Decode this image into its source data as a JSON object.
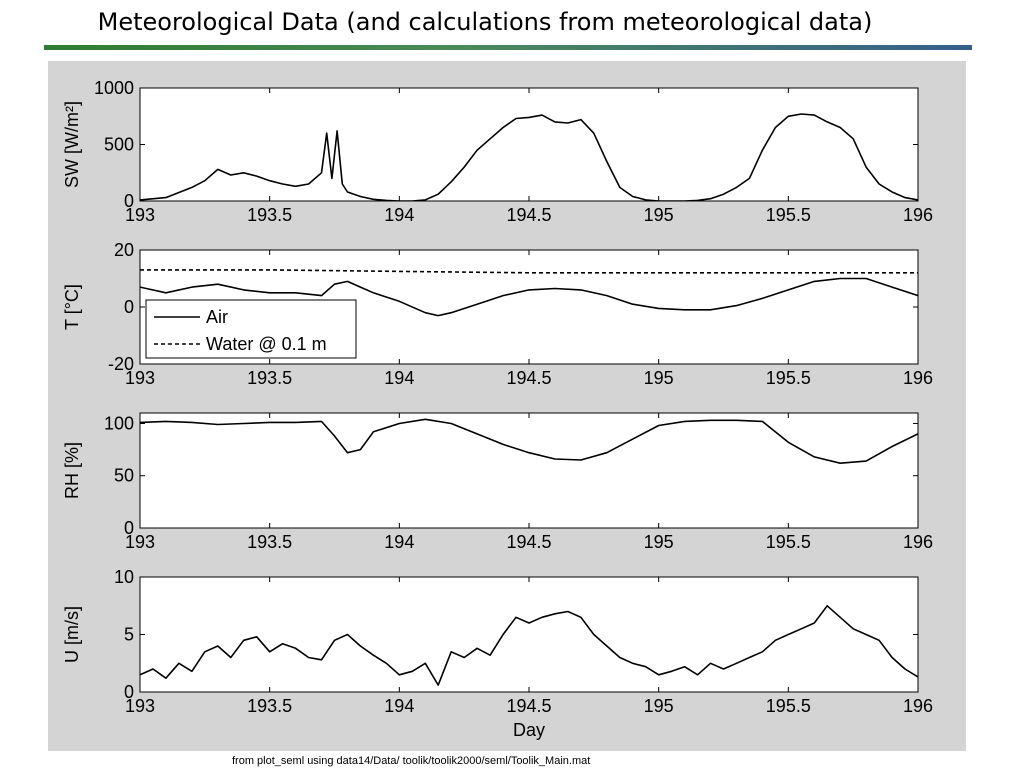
{
  "slide": {
    "title": "Meteorological Data (and calculations from meteorological data)",
    "footnote": "from  plot_seml using data14/Data/ toolik/toolik2000/seml/Toolik_Main.mat",
    "rule_colors": [
      "#2e7d32",
      "#355f8d"
    ],
    "figure_background": "#d4d4d4"
  },
  "chart_data": [
    {
      "type": "line",
      "title": "",
      "xlabel": "",
      "ylabel": "SW [W/m²]",
      "xlim": [
        193,
        196
      ],
      "ylim": [
        0,
        1000
      ],
      "x_ticks": [
        "193",
        "193.5",
        "194",
        "194.5",
        "195",
        "195.5",
        "196"
      ],
      "y_ticks": [
        "0",
        "500",
        "1000"
      ],
      "series": [
        {
          "color": "#000000",
          "style": "solid",
          "x": [
            193.0,
            193.1,
            193.2,
            193.25,
            193.3,
            193.35,
            193.4,
            193.45,
            193.5,
            193.55,
            193.6,
            193.65,
            193.7,
            193.72,
            193.74,
            193.76,
            193.78,
            193.8,
            193.85,
            193.9,
            193.95,
            194.0,
            194.05,
            194.1,
            194.15,
            194.2,
            194.25,
            194.3,
            194.35,
            194.4,
            194.45,
            194.5,
            194.55,
            194.6,
            194.65,
            194.7,
            194.75,
            194.8,
            194.85,
            194.9,
            194.95,
            195.0,
            195.05,
            195.1,
            195.15,
            195.2,
            195.25,
            195.3,
            195.35,
            195.4,
            195.45,
            195.5,
            195.55,
            195.6,
            195.65,
            195.7,
            195.75,
            195.8,
            195.85,
            195.9,
            195.95,
            196.0
          ],
          "values": [
            10,
            30,
            120,
            180,
            280,
            230,
            250,
            220,
            180,
            150,
            130,
            150,
            250,
            600,
            200,
            620,
            150,
            80,
            40,
            15,
            5,
            0,
            0,
            10,
            60,
            170,
            300,
            450,
            550,
            650,
            730,
            740,
            760,
            700,
            690,
            720,
            600,
            350,
            120,
            40,
            10,
            0,
            0,
            0,
            5,
            20,
            60,
            120,
            200,
            450,
            650,
            750,
            770,
            760,
            700,
            650,
            550,
            300,
            150,
            80,
            30,
            10
          ]
        }
      ]
    },
    {
      "type": "line",
      "title": "",
      "xlabel": "",
      "ylabel": "T [°C]",
      "xlim": [
        193,
        196
      ],
      "ylim": [
        -20,
        20
      ],
      "x_ticks": [
        "193",
        "193.5",
        "194",
        "194.5",
        "195",
        "195.5",
        "196"
      ],
      "y_ticks": [
        "-20",
        "0",
        "20"
      ],
      "legend": {
        "position": "bottom-left",
        "entries": [
          "Air",
          "Water @ 0.1 m"
        ]
      },
      "series": [
        {
          "name": "Air",
          "color": "#000000",
          "style": "solid",
          "x": [
            193.0,
            193.1,
            193.2,
            193.3,
            193.4,
            193.5,
            193.6,
            193.7,
            193.75,
            193.8,
            193.85,
            193.9,
            194.0,
            194.1,
            194.15,
            194.2,
            194.3,
            194.4,
            194.5,
            194.6,
            194.7,
            194.8,
            194.9,
            195.0,
            195.1,
            195.2,
            195.3,
            195.4,
            195.5,
            195.6,
            195.7,
            195.8,
            195.9,
            196.0
          ],
          "values": [
            7,
            5,
            7,
            8,
            6,
            5,
            5,
            4,
            8,
            9,
            7,
            5,
            2,
            -2,
            -3,
            -2,
            1,
            4,
            6,
            6.5,
            6,
            4,
            1,
            -0.5,
            -1,
            -1,
            0.5,
            3,
            6,
            9,
            10,
            10,
            7,
            4
          ]
        },
        {
          "name": "Water @ 0.1 m",
          "color": "#000000",
          "style": "dashed",
          "x": [
            193.0,
            193.5,
            194.0,
            194.5,
            195.0,
            195.5,
            196.0
          ],
          "values": [
            13,
            13,
            12.5,
            12,
            12,
            12,
            12
          ]
        }
      ]
    },
    {
      "type": "line",
      "title": "",
      "xlabel": "",
      "ylabel": "RH [%]",
      "xlim": [
        193,
        196
      ],
      "ylim": [
        0,
        110
      ],
      "x_ticks": [
        "193",
        "193.5",
        "194",
        "194.5",
        "195",
        "195.5",
        "196"
      ],
      "y_ticks": [
        "0",
        "50",
        "100"
      ],
      "series": [
        {
          "color": "#000000",
          "style": "solid",
          "x": [
            193.0,
            193.1,
            193.2,
            193.3,
            193.4,
            193.5,
            193.6,
            193.7,
            193.75,
            193.8,
            193.85,
            193.9,
            194.0,
            194.1,
            194.2,
            194.3,
            194.4,
            194.5,
            194.6,
            194.7,
            194.8,
            194.9,
            195.0,
            195.1,
            195.2,
            195.3,
            195.4,
            195.5,
            195.6,
            195.7,
            195.8,
            195.9,
            196.0
          ],
          "values": [
            101,
            102,
            101,
            99,
            100,
            101,
            101,
            102,
            88,
            72,
            75,
            92,
            100,
            104,
            100,
            90,
            80,
            72,
            66,
            65,
            72,
            85,
            98,
            102,
            103,
            103,
            102,
            82,
            68,
            62,
            64,
            78,
            90
          ]
        }
      ]
    },
    {
      "type": "line",
      "title": "",
      "xlabel": "Day",
      "ylabel": "U [m/s]",
      "xlim": [
        193,
        196
      ],
      "ylim": [
        0,
        10
      ],
      "x_ticks": [
        "193",
        "193.5",
        "194",
        "194.5",
        "195",
        "195.5",
        "196"
      ],
      "y_ticks": [
        "0",
        "5",
        "10"
      ],
      "series": [
        {
          "color": "#000000",
          "style": "solid",
          "x": [
            193.0,
            193.05,
            193.1,
            193.15,
            193.2,
            193.25,
            193.3,
            193.35,
            193.4,
            193.45,
            193.5,
            193.55,
            193.6,
            193.65,
            193.7,
            193.75,
            193.8,
            193.85,
            193.9,
            193.95,
            194.0,
            194.05,
            194.1,
            194.15,
            194.2,
            194.25,
            194.3,
            194.35,
            194.4,
            194.45,
            194.5,
            194.55,
            194.6,
            194.65,
            194.7,
            194.75,
            194.8,
            194.85,
            194.9,
            194.95,
            195.0,
            195.05,
            195.1,
            195.15,
            195.2,
            195.25,
            195.3,
            195.35,
            195.4,
            195.45,
            195.5,
            195.55,
            195.6,
            195.65,
            195.7,
            195.75,
            195.8,
            195.85,
            195.9,
            195.95,
            196.0
          ],
          "values": [
            1.5,
            2,
            1.2,
            2.5,
            1.8,
            3.5,
            4,
            3,
            4.5,
            4.8,
            3.5,
            4.2,
            3.8,
            3,
            2.8,
            4.5,
            5,
            4,
            3.2,
            2.5,
            1.5,
            1.8,
            2.5,
            0.6,
            3.5,
            3,
            3.8,
            3.2,
            5,
            6.5,
            6,
            6.5,
            6.8,
            7,
            6.5,
            5,
            4,
            3,
            2.5,
            2.2,
            1.5,
            1.8,
            2.2,
            1.5,
            2.5,
            2,
            2.5,
            3,
            3.5,
            4.5,
            5,
            5.5,
            6,
            7.5,
            6.5,
            5.5,
            5,
            4.5,
            3,
            2,
            1.3
          ]
        }
      ]
    }
  ]
}
